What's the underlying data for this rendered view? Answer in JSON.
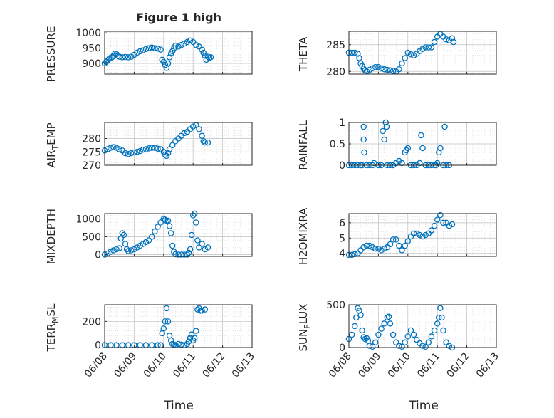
{
  "figure": {
    "title": "Figure 1 high",
    "xlabel": "Time",
    "x_ticks": [
      "06/08",
      "06/09",
      "06/10",
      "06/11",
      "06/12",
      "06/13"
    ],
    "marker_color": "#0072BD"
  },
  "chart_data": [
    {
      "type": "scatter",
      "ylabel": "PRESSURE",
      "ylim": [
        865,
        1005
      ],
      "yticks": [
        900,
        950,
        1000
      ],
      "grid": true,
      "x": [
        0.0,
        0.05,
        0.1,
        0.15,
        0.2,
        0.25,
        0.3,
        0.35,
        0.4,
        0.45,
        0.5,
        0.6,
        0.7,
        0.8,
        0.9,
        1.0,
        1.1,
        1.2,
        1.3,
        1.4,
        1.5,
        1.6,
        1.7,
        1.8,
        1.9,
        1.95,
        2.0,
        2.05,
        2.1,
        2.15,
        2.2,
        2.25,
        2.3,
        2.35,
        2.4,
        2.5,
        2.6,
        2.7,
        2.8,
        2.9,
        3.0,
        3.1,
        3.2,
        3.3,
        3.35,
        3.4,
        3.45,
        3.5,
        3.55,
        3.6
      ],
      "values": [
        900,
        905,
        910,
        915,
        918,
        920,
        925,
        932,
        930,
        925,
        922,
        920,
        921,
        920,
        922,
        928,
        935,
        940,
        943,
        947,
        950,
        952,
        950,
        948,
        945,
        912,
        905,
        895,
        885,
        900,
        920,
        932,
        940,
        950,
        958,
        955,
        960,
        965,
        970,
        975,
        970,
        960,
        955,
        945,
        935,
        925,
        912,
        922,
        918,
        920
      ]
    },
    {
      "type": "scatter",
      "ylabel": "THETA",
      "ylim": [
        279.5,
        287.5
      ],
      "yticks": [
        280,
        285
      ],
      "grid": true,
      "x": [
        0.0,
        0.1,
        0.2,
        0.3,
        0.35,
        0.4,
        0.45,
        0.5,
        0.55,
        0.6,
        0.7,
        0.8,
        0.9,
        1.0,
        1.1,
        1.2,
        1.3,
        1.4,
        1.5,
        1.6,
        1.7,
        1.8,
        1.9,
        2.0,
        2.1,
        2.2,
        2.3,
        2.4,
        2.5,
        2.6,
        2.7,
        2.8,
        2.9,
        3.0,
        3.1,
        3.2,
        3.3,
        3.4,
        3.5,
        3.55
      ],
      "values": [
        283.5,
        283.5,
        283.5,
        283.3,
        282.5,
        281.5,
        281,
        280.5,
        280.2,
        280.0,
        280.3,
        280.6,
        280.8,
        280.8,
        280.6,
        280.4,
        280.3,
        280.2,
        280.1,
        280.0,
        280.4,
        281.5,
        282.5,
        283.5,
        283.2,
        283.0,
        283.3,
        283.8,
        284.2,
        284.5,
        284.5,
        284.5,
        285.5,
        286.5,
        287.0,
        286.5,
        286.0,
        285.8,
        286.2,
        285.5
      ]
    },
    {
      "type": "scatter",
      "ylabel": "AIR_TEMP",
      "ylim": [
        270,
        286
      ],
      "yticks": [
        270,
        275,
        280
      ],
      "grid": true,
      "x": [
        0.0,
        0.1,
        0.2,
        0.3,
        0.4,
        0.5,
        0.6,
        0.7,
        0.8,
        0.9,
        1.0,
        1.1,
        1.2,
        1.3,
        1.4,
        1.5,
        1.6,
        1.7,
        1.8,
        1.9,
        2.0,
        2.05,
        2.1,
        2.15,
        2.2,
        2.3,
        2.4,
        2.5,
        2.6,
        2.7,
        2.8,
        2.9,
        3.0,
        3.1,
        3.2,
        3.3,
        3.35,
        3.4,
        3.5
      ],
      "values": [
        275.5,
        276,
        276.5,
        276.8,
        276.5,
        276,
        275.5,
        274.5,
        274.2,
        274.5,
        274.8,
        275.0,
        275.3,
        275.8,
        276.0,
        276.3,
        276.5,
        276.5,
        276.2,
        276.0,
        275.0,
        274.0,
        273.5,
        274.5,
        276.0,
        277.5,
        279.0,
        280.0,
        281.0,
        282.0,
        282.5,
        283.5,
        284.5,
        285.0,
        283.5,
        281.0,
        279.0,
        278.5,
        278.5
      ]
    },
    {
      "type": "scatter",
      "ylabel": "RAINFALL",
      "ylim": [
        0,
        1
      ],
      "yticks": [
        0,
        0.5,
        1
      ],
      "grid": true,
      "x": [
        0.0,
        0.1,
        0.2,
        0.3,
        0.4,
        0.45,
        0.5,
        0.5,
        0.52,
        0.6,
        0.7,
        0.8,
        0.85,
        1.0,
        1.1,
        1.15,
        1.2,
        1.25,
        1.28,
        1.3,
        1.4,
        1.5,
        1.6,
        1.7,
        1.8,
        1.9,
        1.95,
        2.0,
        2.1,
        2.2,
        2.3,
        2.4,
        2.45,
        2.5,
        2.6,
        2.7,
        2.8,
        2.9,
        2.95,
        3.0,
        3.05,
        3.1,
        3.2,
        3.25,
        3.3,
        3.4
      ],
      "values": [
        0,
        0,
        0,
        0,
        0,
        0,
        0.9,
        0.6,
        0.3,
        0,
        0,
        0,
        0.05,
        0,
        0,
        0.8,
        0.6,
        1.0,
        0.9,
        0,
        0,
        0,
        0.05,
        0.1,
        0.05,
        0.3,
        0.35,
        0.4,
        0,
        0,
        0,
        0.05,
        0.7,
        0.4,
        0,
        0,
        0,
        0,
        0,
        0.05,
        0.3,
        0.4,
        0,
        0.9,
        0,
        0
      ]
    },
    {
      "type": "scatter",
      "ylabel": "MIXDEPTH",
      "ylim": [
        -50,
        1150
      ],
      "yticks": [
        0,
        500,
        1000
      ],
      "grid": true,
      "x": [
        0.0,
        0.1,
        0.2,
        0.3,
        0.4,
        0.5,
        0.55,
        0.6,
        0.65,
        0.7,
        0.75,
        0.8,
        0.9,
        1.0,
        1.1,
        1.2,
        1.3,
        1.4,
        1.5,
        1.6,
        1.7,
        1.8,
        1.9,
        2.0,
        2.05,
        2.1,
        2.15,
        2.2,
        2.25,
        2.3,
        2.35,
        2.4,
        2.5,
        2.6,
        2.7,
        2.8,
        2.85,
        2.9,
        2.95,
        3.0,
        3.05,
        3.1,
        3.15,
        3.2,
        3.3,
        3.4,
        3.5
      ],
      "values": [
        0,
        30,
        80,
        120,
        150,
        180,
        450,
        600,
        550,
        300,
        150,
        100,
        120,
        150,
        200,
        250,
        300,
        350,
        400,
        500,
        650,
        780,
        900,
        1000,
        980,
        950,
        950,
        800,
        600,
        250,
        80,
        10,
        0,
        0,
        0,
        0,
        50,
        150,
        550,
        1100,
        1150,
        900,
        400,
        200,
        300,
        150,
        200
      ]
    },
    {
      "type": "scatter",
      "ylabel": "H2OMIXRA",
      "ylim": [
        3.8,
        6.6
      ],
      "yticks": [
        4,
        5,
        6
      ],
      "grid": true,
      "x": [
        0.0,
        0.1,
        0.2,
        0.3,
        0.4,
        0.5,
        0.6,
        0.7,
        0.8,
        0.9,
        1.0,
        1.1,
        1.2,
        1.3,
        1.4,
        1.5,
        1.6,
        1.7,
        1.8,
        1.9,
        2.0,
        2.1,
        2.2,
        2.3,
        2.4,
        2.5,
        2.6,
        2.7,
        2.8,
        2.9,
        3.0,
        3.1,
        3.2,
        3.3,
        3.4,
        3.5
      ],
      "values": [
        3.9,
        3.9,
        3.95,
        4.0,
        4.2,
        4.4,
        4.5,
        4.5,
        4.4,
        4.3,
        4.3,
        4.2,
        4.3,
        4.4,
        4.6,
        4.9,
        4.9,
        4.5,
        4.2,
        4.5,
        4.8,
        5.1,
        5.3,
        5.3,
        5.2,
        5.1,
        5.2,
        5.3,
        5.5,
        5.8,
        6.2,
        6.5,
        6.0,
        6.0,
        5.8,
        5.9
      ]
    },
    {
      "type": "scatter",
      "ylabel": "TERR_MSL",
      "ylim": [
        -20,
        340
      ],
      "yticks": [
        0,
        200
      ],
      "grid": true,
      "x": [
        0.0,
        0.2,
        0.4,
        0.6,
        0.8,
        1.0,
        1.2,
        1.4,
        1.6,
        1.8,
        1.9,
        1.95,
        2.0,
        2.05,
        2.1,
        2.15,
        2.2,
        2.25,
        2.3,
        2.35,
        2.4,
        2.5,
        2.6,
        2.7,
        2.8,
        2.85,
        2.9,
        2.95,
        3.0,
        3.05,
        3.1,
        3.15,
        3.2,
        3.25,
        3.3,
        3.4
      ],
      "values": [
        0,
        0,
        0,
        0,
        0,
        0,
        0,
        0,
        0,
        0,
        0,
        100,
        140,
        200,
        310,
        200,
        80,
        40,
        10,
        5,
        0,
        10,
        5,
        0,
        10,
        30,
        60,
        90,
        40,
        60,
        120,
        300,
        310,
        290,
        290,
        300
      ]
    },
    {
      "type": "scatter",
      "ylabel": "SUN_FLUX",
      "ylim": [
        0,
        500
      ],
      "yticks": [
        0,
        500
      ],
      "grid": true,
      "x": [
        0.0,
        0.1,
        0.2,
        0.25,
        0.3,
        0.35,
        0.4,
        0.45,
        0.5,
        0.55,
        0.6,
        0.65,
        0.7,
        0.8,
        0.9,
        1.0,
        1.1,
        1.2,
        1.3,
        1.35,
        1.4,
        1.5,
        1.6,
        1.7,
        1.8,
        1.9,
        2.0,
        2.1,
        2.2,
        2.3,
        2.4,
        2.5,
        2.6,
        2.7,
        2.8,
        2.9,
        3.0,
        3.05,
        3.1,
        3.15,
        3.2,
        3.3,
        3.4,
        3.5
      ],
      "values": [
        100,
        150,
        250,
        350,
        460,
        430,
        380,
        200,
        120,
        100,
        110,
        80,
        20,
        10,
        60,
        150,
        220,
        280,
        350,
        360,
        280,
        150,
        60,
        20,
        10,
        60,
        130,
        200,
        150,
        90,
        50,
        20,
        10,
        60,
        130,
        200,
        280,
        350,
        460,
        350,
        200,
        60,
        20,
        0
      ]
    }
  ]
}
